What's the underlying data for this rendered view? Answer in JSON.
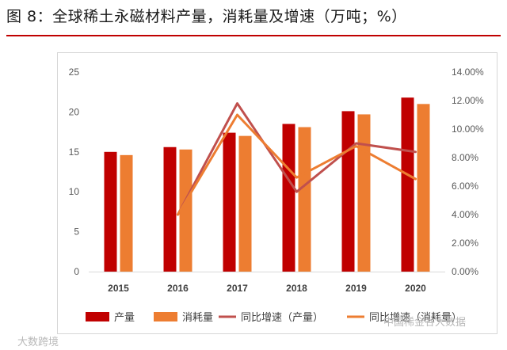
{
  "figure_title": "图 8：全球稀土永磁材料产量，消耗量及增速（万吨；%）",
  "watermarks": {
    "left": "大数跨境",
    "right": "中国稀金谷大数据"
  },
  "colors": {
    "production": "#c00000",
    "consumption": "#ed7d31",
    "production_growth": "#c0504d",
    "consumption_growth": "#ed7d31",
    "title_rule": "#c00000",
    "grid": "#d9d9d9"
  },
  "chart_data": {
    "type": "bar",
    "title": "全球稀土永磁材料产量，消耗量及增速（万吨；%）",
    "categories": [
      "2015",
      "2016",
      "2017",
      "2018",
      "2019",
      "2020"
    ],
    "series": [
      {
        "name": "产量",
        "kind": "bar",
        "axis": "left",
        "values": [
          15.0,
          15.6,
          17.4,
          18.5,
          20.1,
          21.8
        ]
      },
      {
        "name": "消耗量",
        "kind": "bar",
        "axis": "left",
        "values": [
          14.6,
          15.3,
          17.0,
          18.1,
          19.7,
          21.0
        ]
      },
      {
        "name": "同比增速（产量）",
        "kind": "line",
        "axis": "right",
        "values": [
          null,
          4.0,
          11.8,
          5.6,
          9.0,
          8.4
        ]
      },
      {
        "name": "同比增速（消耗量）",
        "kind": "line",
        "axis": "right",
        "values": [
          null,
          4.0,
          11.0,
          6.6,
          8.8,
          6.5
        ]
      }
    ],
    "y_left": {
      "min": 0,
      "max": 25,
      "ticks": [
        "0",
        "5",
        "10",
        "15",
        "20",
        "25"
      ]
    },
    "y_right": {
      "min": 0,
      "max": 14,
      "ticks": [
        "0.00%",
        "2.00%",
        "4.00%",
        "6.00%",
        "8.00%",
        "10.00%",
        "12.00%",
        "14.00%"
      ]
    },
    "grid": false,
    "legend": [
      "产量",
      "消耗量",
      "同比增速（产量）",
      "同比增速（消耗量）"
    ],
    "legend_position": "bottom"
  }
}
